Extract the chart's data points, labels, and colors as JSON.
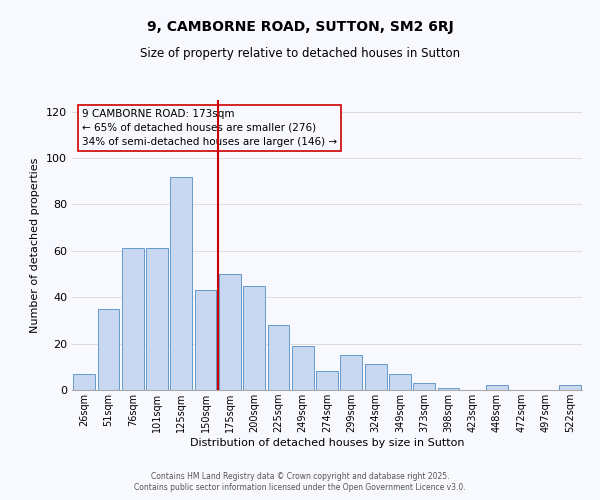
{
  "title": "9, CAMBORNE ROAD, SUTTON, SM2 6RJ",
  "subtitle": "Size of property relative to detached houses in Sutton",
  "xlabel": "Distribution of detached houses by size in Sutton",
  "ylabel": "Number of detached properties",
  "bar_labels": [
    "26sqm",
    "51sqm",
    "76sqm",
    "101sqm",
    "125sqm",
    "150sqm",
    "175sqm",
    "200sqm",
    "225sqm",
    "249sqm",
    "274sqm",
    "299sqm",
    "324sqm",
    "349sqm",
    "373sqm",
    "398sqm",
    "423sqm",
    "448sqm",
    "472sqm",
    "497sqm",
    "522sqm"
  ],
  "bar_values": [
    7,
    35,
    61,
    61,
    92,
    43,
    50,
    45,
    28,
    19,
    8,
    15,
    11,
    7,
    3,
    1,
    0,
    2,
    0,
    0,
    2
  ],
  "bar_color": "#c8d8f0",
  "bar_edge_color": "#6699cc",
  "vline_color": "#cc0000",
  "annotation_lines": [
    "9 CAMBORNE ROAD: 173sqm",
    "← 65% of detached houses are smaller (276)",
    "34% of semi-detached houses are larger (146) →"
  ],
  "ylim": [
    0,
    125
  ],
  "yticks": [
    0,
    20,
    40,
    60,
    80,
    100,
    120
  ],
  "grid_color": "#dddddd",
  "bg_color": "#f7f9ff",
  "footer1": "Contains HM Land Registry data © Crown copyright and database right 2025.",
  "footer2": "Contains public sector information licensed under the Open Government Licence v3.0."
}
